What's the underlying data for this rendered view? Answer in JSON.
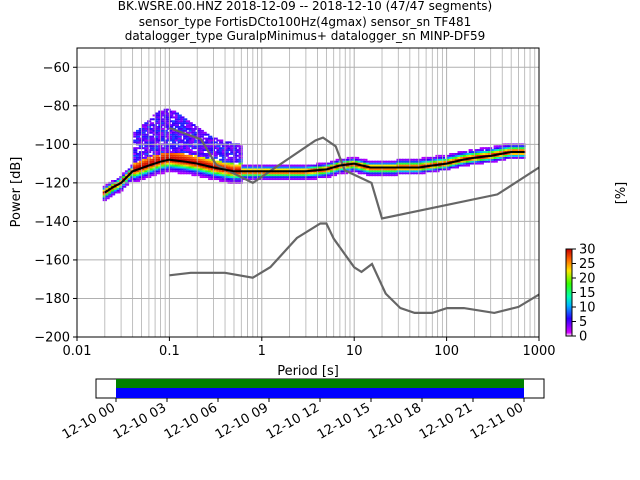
{
  "title_lines": [
    "BK.WSRE.00.HNZ   2018-12-09 -- 2018-12-10  (47/47 segments)",
    "sensor_type FortisDCto100Hz(4gmax) sensor_sn TF481",
    "datalogger_type GuralpMinimus+ datalogger_sn MINP-DF59"
  ],
  "chart_data": [
    {
      "type": "heatmap",
      "name": "ppsd",
      "xlabel": "Period [s]",
      "ylabel": "Power [dB]",
      "xscale": "log",
      "xlim": [
        0.01,
        1000
      ],
      "ylim": [
        -200,
        -50
      ],
      "x_ticks": [
        "0.01",
        "0.1",
        "1",
        "10",
        "100",
        "1000"
      ],
      "y_ticks": [
        -60,
        -80,
        -100,
        -120,
        -140,
        -160,
        -180,
        -200
      ],
      "grid": true,
      "colorbar": {
        "label": "[%]",
        "min": 0,
        "max": 30,
        "ticks": [
          0,
          5,
          10,
          15,
          20,
          25,
          30
        ]
      },
      "noise_model_high": {
        "period": [
          0.1,
          0.22,
          0.32,
          0.8,
          3.8,
          4.6,
          6.3,
          7.9,
          15.4,
          20,
          354.8,
          1000
        ],
        "db": [
          -91.5,
          -97.4,
          -110.5,
          -120,
          -98,
          -96.5,
          -101,
          -113.5,
          -120,
          -138.5,
          -126,
          -112
        ]
      },
      "noise_model_low": {
        "period": [
          0.1,
          0.17,
          0.4,
          0.8,
          1.24,
          2.4,
          4.3,
          5,
          6,
          10,
          12,
          15.6,
          21.9,
          31.6,
          45,
          70,
          101,
          154,
          328,
          600,
          1000
        ],
        "db": [
          -168,
          -166.7,
          -166.7,
          -169.2,
          -163.7,
          -148.6,
          -141.1,
          -141.1,
          -149,
          -163.8,
          -166.2,
          -162.1,
          -177.5,
          -185,
          -187.5,
          -187.5,
          -185,
          -185,
          -187.5,
          -184.4,
          -178
        ]
      },
      "mean_curve": {
        "period": [
          0.02,
          0.025,
          0.03,
          0.04,
          0.06,
          0.08,
          0.1,
          0.15,
          0.2,
          0.3,
          0.5,
          0.8,
          1,
          2,
          3,
          5,
          7,
          10,
          15,
          20,
          30,
          50,
          70,
          100,
          150,
          200,
          300,
          500,
          700
        ],
        "db": [
          -125,
          -122,
          -120,
          -114,
          -111,
          -109,
          -108,
          -109,
          -110,
          -112,
          -114,
          -114,
          -114,
          -114,
          -114,
          -113,
          -111,
          -110,
          -112,
          -112,
          -112,
          -112,
          -111,
          -110,
          -108,
          -107,
          -106,
          -104,
          -104
        ]
      }
    },
    {
      "type": "bar",
      "name": "data-coverage",
      "x_ticks": [
        "12-10 00",
        "12-10 03",
        "12-10 06",
        "12-10 09",
        "12-10 12",
        "12-10 15",
        "12-10 18",
        "12-10 21",
        "12-11 00"
      ],
      "series": [
        {
          "label": "green",
          "color": "#008000"
        },
        {
          "label": "blue",
          "color": "#0000ff"
        }
      ]
    }
  ]
}
